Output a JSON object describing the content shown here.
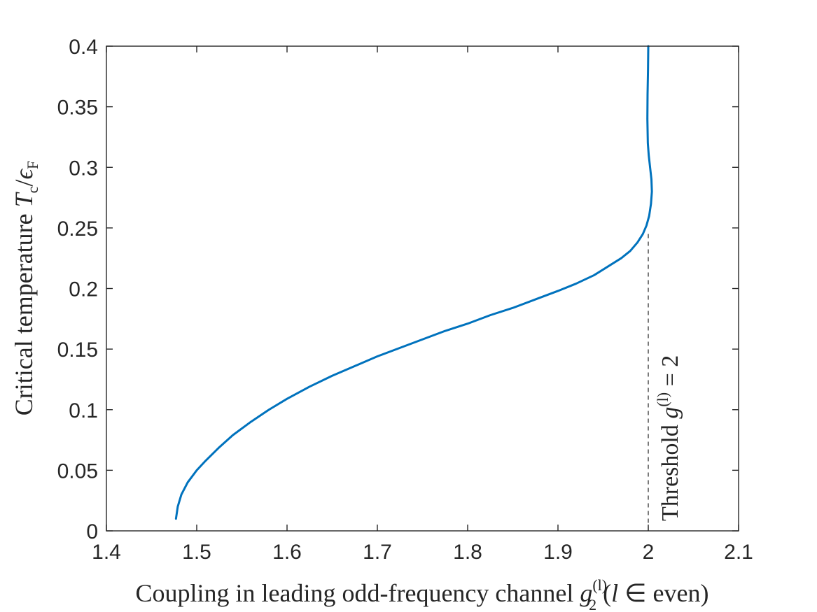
{
  "chart_data": {
    "type": "line",
    "xlabel": {
      "prefix": "Coupling in leading odd-frequency channel ",
      "var": "g",
      "sub": "2",
      "sup": "(l)",
      "suffix_open": " (",
      "suffix_var": "l",
      "suffix_rest": " ∈ even)"
    },
    "ylabel": {
      "prefix": "Critical temperature ",
      "var1": "T",
      "sub1": "c",
      "slash": "/",
      "var2": "ϵ",
      "sub2": "F"
    },
    "annotation": {
      "prefix": "Threshold ",
      "var": "g",
      "sup": "(l)",
      "rest": " = 2"
    },
    "xlim": [
      1.4,
      2.1
    ],
    "ylim": [
      0,
      0.4
    ],
    "xticks": [
      "1.4",
      "1.5",
      "1.6",
      "1.7",
      "1.8",
      "1.9",
      "2",
      "2.1"
    ],
    "yticks": [
      "0",
      "0.05",
      "0.1",
      "0.15",
      "0.2",
      "0.25",
      "0.3",
      "0.35",
      "0.4"
    ],
    "threshold_x": 2.0,
    "threshold_ymax": 0.245,
    "grid": false,
    "series": [
      {
        "color": "#0072BD",
        "x": [
          1.477,
          1.479,
          1.483,
          1.49,
          1.5,
          1.51,
          1.525,
          1.54,
          1.56,
          1.58,
          1.6,
          1.625,
          1.65,
          1.675,
          1.7,
          1.725,
          1.75,
          1.775,
          1.8,
          1.825,
          1.85,
          1.875,
          1.9,
          1.92,
          1.94,
          1.955,
          1.97,
          1.98,
          1.988,
          1.994,
          1.998,
          2.001,
          2.003,
          2.004,
          2.0035,
          2.002,
          2.0005,
          1.9995,
          1.999,
          1.9992,
          1.9997,
          2.0
        ],
        "y": [
          0.01,
          0.02,
          0.03,
          0.04,
          0.05,
          0.058,
          0.069,
          0.079,
          0.09,
          0.1,
          0.109,
          0.119,
          0.128,
          0.136,
          0.144,
          0.151,
          0.158,
          0.165,
          0.171,
          0.178,
          0.184,
          0.191,
          0.198,
          0.204,
          0.211,
          0.218,
          0.225,
          0.231,
          0.238,
          0.245,
          0.252,
          0.26,
          0.27,
          0.28,
          0.29,
          0.3,
          0.31,
          0.32,
          0.34,
          0.36,
          0.38,
          0.4
        ]
      }
    ]
  }
}
